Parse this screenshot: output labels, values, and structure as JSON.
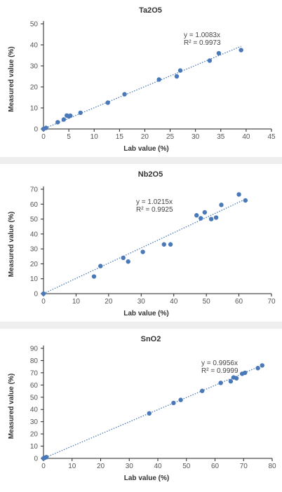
{
  "chart_data": [
    {
      "type": "scatter",
      "title": "Ta2O5",
      "xlabel": "Lab value (%)",
      "ylabel": "Measured value (%)",
      "xlim": [
        0,
        45
      ],
      "ylim": [
        0,
        50
      ],
      "xticks": [
        "0",
        "5",
        "10",
        "15",
        "20",
        "25",
        "30",
        "35",
        "40",
        "45"
      ],
      "yticks": [
        "0",
        "10",
        "20",
        "30",
        "40",
        "50"
      ],
      "equation": "y = 1.0083x",
      "r2": "R² = 0.9973",
      "slope": 1.0083,
      "trend_x_max": 39,
      "series": [
        {
          "points": [
            [
              0,
              0
            ],
            [
              0.5,
              0.5
            ],
            [
              2.8,
              3.2
            ],
            [
              4,
              4.5
            ],
            [
              4.6,
              6.4
            ],
            [
              5,
              6
            ],
            [
              5.3,
              6.3
            ],
            [
              7.3,
              7.7
            ],
            [
              12.7,
              12.5
            ],
            [
              16,
              16.5
            ],
            [
              22.8,
              23.5
            ],
            [
              26.3,
              25
            ],
            [
              27,
              27.8
            ],
            [
              32.8,
              32.5
            ],
            [
              34.6,
              36
            ],
            [
              39,
              37.5
            ]
          ]
        }
      ],
      "grid": false
    },
    {
      "type": "scatter",
      "title": "Nb2O5",
      "xlabel": "Lab value (%)",
      "ylabel": "Measured value (%)",
      "xlim": [
        0,
        70
      ],
      "ylim": [
        0,
        70
      ],
      "xticks": [
        "0",
        "10",
        "20",
        "30",
        "40",
        "50",
        "60",
        "70"
      ],
      "yticks": [
        "0",
        "10",
        "20",
        "30",
        "40",
        "50",
        "60",
        "70"
      ],
      "equation": "y = 1.0215x",
      "r2": "R² = 0.9925",
      "slope": 1.0215,
      "trend_x_max": 62,
      "series": [
        {
          "points": [
            [
              0,
              0
            ],
            [
              15.5,
              11.5
            ],
            [
              17.5,
              18.5
            ],
            [
              24.5,
              24
            ],
            [
              26,
              21.5
            ],
            [
              30.5,
              28
            ],
            [
              37,
              33
            ],
            [
              39,
              33
            ],
            [
              47,
              52.5
            ],
            [
              48.3,
              50.5
            ],
            [
              49.5,
              54.5
            ],
            [
              51.5,
              50
            ],
            [
              53,
              51
            ],
            [
              54.6,
              59.5
            ],
            [
              60,
              66.5
            ],
            [
              62,
              62.5
            ]
          ]
        }
      ],
      "grid": false
    },
    {
      "type": "scatter",
      "title": "SnO2",
      "xlabel": "Lab value (%)",
      "ylabel": "Measured value (%)",
      "xlim": [
        0,
        80
      ],
      "ylim": [
        0,
        90
      ],
      "xticks": [
        "0",
        "10",
        "20",
        "30",
        "40",
        "50",
        "60",
        "70",
        "80"
      ],
      "yticks": [
        "0",
        "10",
        "20",
        "30",
        "40",
        "50",
        "60",
        "70",
        "80",
        "90"
      ],
      "equation": "y = 0.9956x",
      "r2": "R² = 0.9999",
      "slope": 0.9956,
      "trend_x_max": 76,
      "series": [
        {
          "points": [
            [
              0,
              0
            ],
            [
              0.5,
              0.5
            ],
            [
              1,
              1
            ],
            [
              37,
              36.8
            ],
            [
              45.5,
              45.3
            ],
            [
              48,
              47.8
            ],
            [
              55.5,
              55.2
            ],
            [
              62,
              61.7
            ],
            [
              65.5,
              63
            ],
            [
              66.5,
              66.2
            ],
            [
              67.5,
              65.5
            ],
            [
              69.5,
              69.2
            ],
            [
              70.5,
              70
            ],
            [
              75,
              73.8
            ],
            [
              76.5,
              76
            ]
          ]
        }
      ],
      "grid": false
    }
  ],
  "colors": {
    "marker": "#4a79b9",
    "trendline": "#4a79b9",
    "axis": "#222222",
    "tick_label": "#555555",
    "axis_title": "#333333",
    "separator": "#eeeeee"
  }
}
